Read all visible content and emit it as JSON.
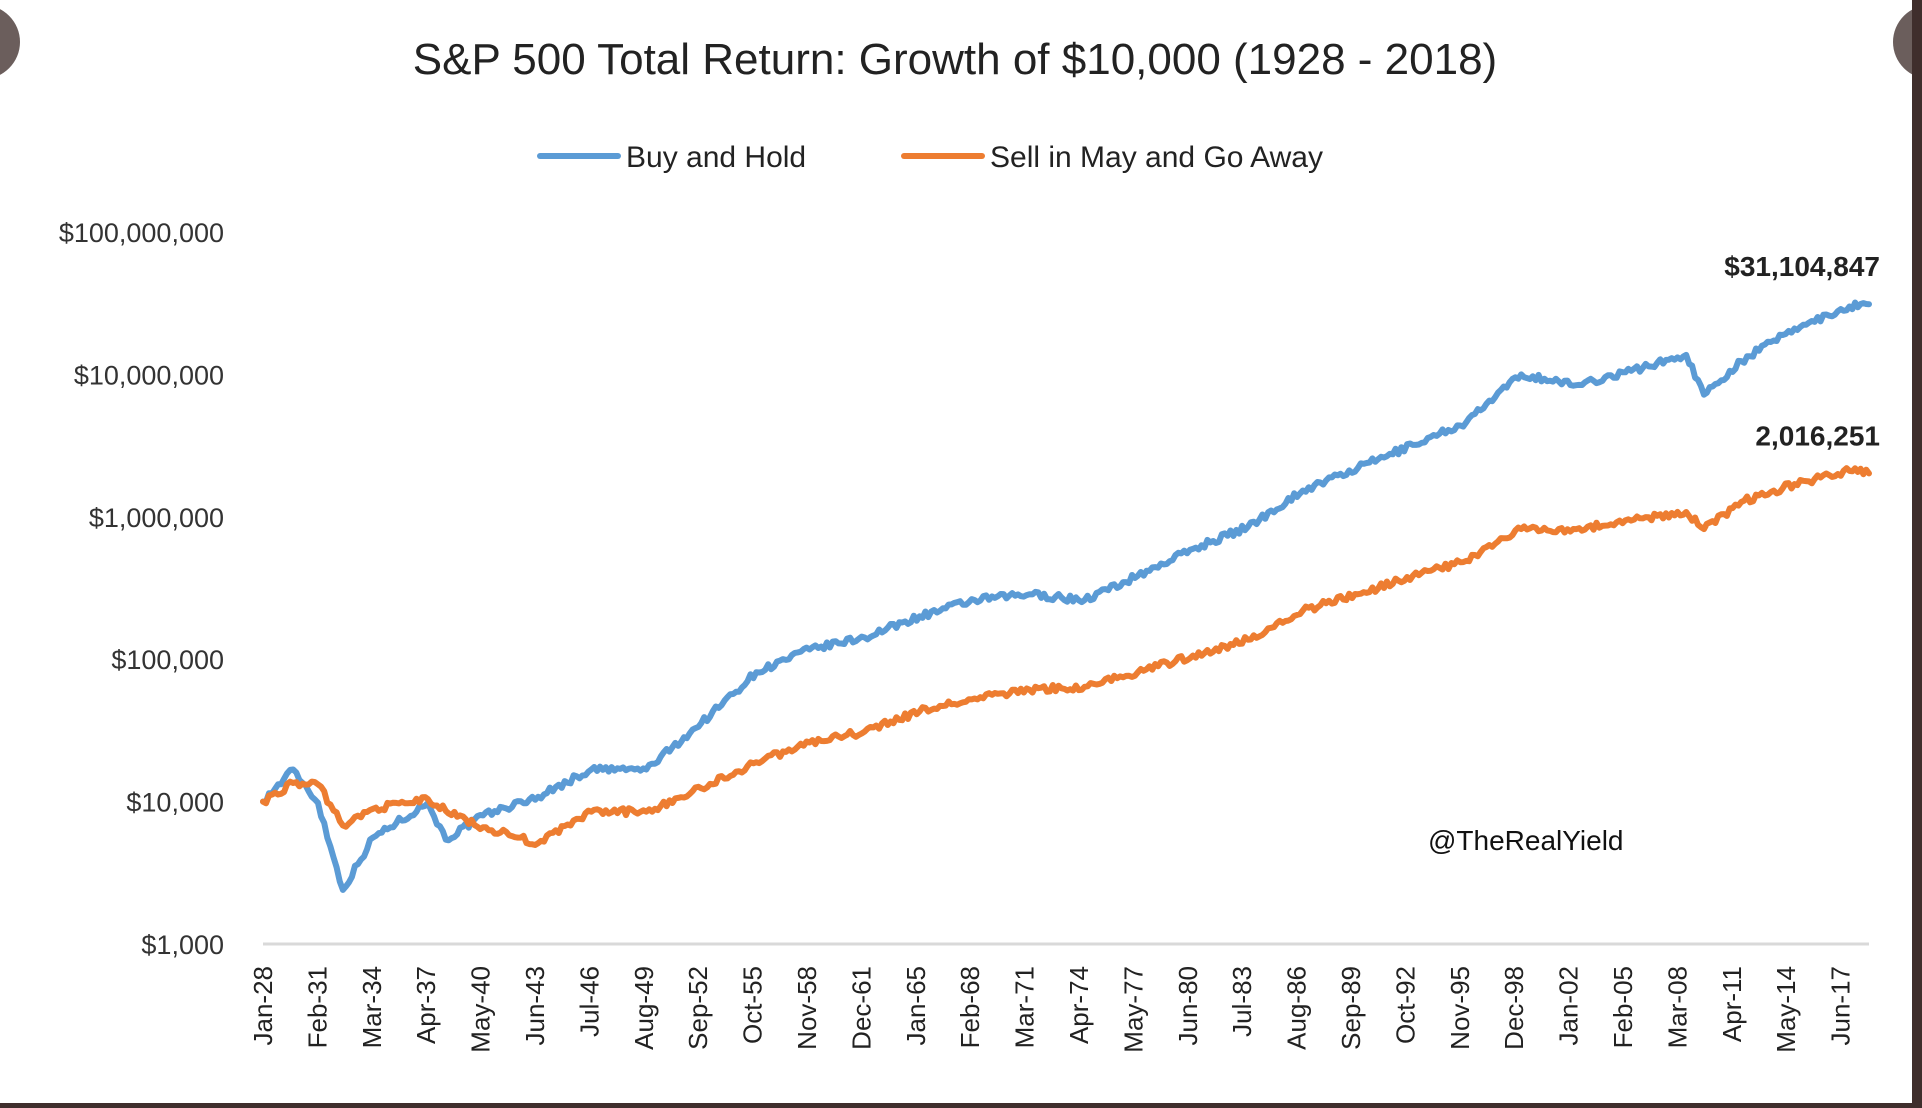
{
  "viewer": {
    "prev_icon": "chevron-left-icon",
    "next_icon": "chevron-right-icon"
  },
  "chart_data": {
    "type": "line",
    "title": "S&P 500 Total Return: Growth of $10,000 (1928 - 2018)",
    "xlabel": "",
    "ylabel": "",
    "yscale": "log",
    "ylim": [
      1000,
      100000000
    ],
    "grid": false,
    "legend_position": "top-center",
    "y_ticks": [
      1000,
      10000,
      100000,
      1000000,
      10000000,
      100000000
    ],
    "y_tick_labels": [
      "$1,000",
      "$10,000",
      "$100,000",
      "$1,000,000",
      "$10,000,000",
      "$100,000,000"
    ],
    "x_tick_labels": [
      "Jan-28",
      "Feb-31",
      "Mar-34",
      "Apr-37",
      "May-40",
      "Jun-43",
      "Jul-46",
      "Aug-49",
      "Sep-52",
      "Oct-55",
      "Nov-58",
      "Dec-61",
      "Jan-65",
      "Feb-68",
      "Mar-71",
      "Apr-74",
      "May-77",
      "Jun-80",
      "Jul-83",
      "Aug-86",
      "Sep-89",
      "Oct-92",
      "Nov-95",
      "Dec-98",
      "Jan-02",
      "Feb-05",
      "Mar-08",
      "Apr-11",
      "May-14",
      "Jun-17"
    ],
    "x_range": [
      1928.0,
      2018.5
    ],
    "x": [
      1928.0,
      1929.7,
      1931.1,
      1932.5,
      1934.2,
      1937.3,
      1938.3,
      1940.4,
      1943.5,
      1946.5,
      1949.6,
      1952.7,
      1955.8,
      1958.8,
      1961.9,
      1965.0,
      1968.1,
      1971.2,
      1974.3,
      1977.3,
      1980.4,
      1983.5,
      1986.6,
      1989.7,
      1992.8,
      1995.8,
      1998.9,
      2002.0,
      2005.1,
      2008.2,
      2009.2,
      2011.3,
      2014.3,
      2017.4,
      2018.5
    ],
    "series": [
      {
        "name": "Buy and Hold",
        "color": "#5b9bd5",
        "values": [
          10000,
          16800,
          9800,
          2400,
          5600,
          9800,
          5400,
          8000,
          10800,
          16800,
          16800,
          35600,
          81000,
          117000,
          142000,
          200000,
          260000,
          286000,
          260000,
          386000,
          595000,
          850000,
          1530000,
          2200000,
          3200000,
          4600000,
          10000000,
          8400000,
          10600000,
          13700000,
          7200000,
          12400000,
          21000000,
          30000000,
          31104847
        ],
        "end_label": "$31,104,847"
      },
      {
        "name": "Sell in May and Go Away",
        "color": "#ed7d31",
        "values": [
          10000,
          13500,
          13200,
          6800,
          8900,
          10400,
          8600,
          6600,
          5100,
          8500,
          8500,
          12400,
          18900,
          26000,
          31000,
          43000,
          53000,
          61000,
          64000,
          81000,
          106000,
          137000,
          220000,
          286000,
          386000,
          490000,
          820000,
          820000,
          940000,
          1080000,
          820000,
          1270000,
          1700000,
          2100000,
          2016251
        ],
        "end_label": "2,016,251"
      }
    ],
    "annotations": [
      "@TheRealYield"
    ]
  }
}
